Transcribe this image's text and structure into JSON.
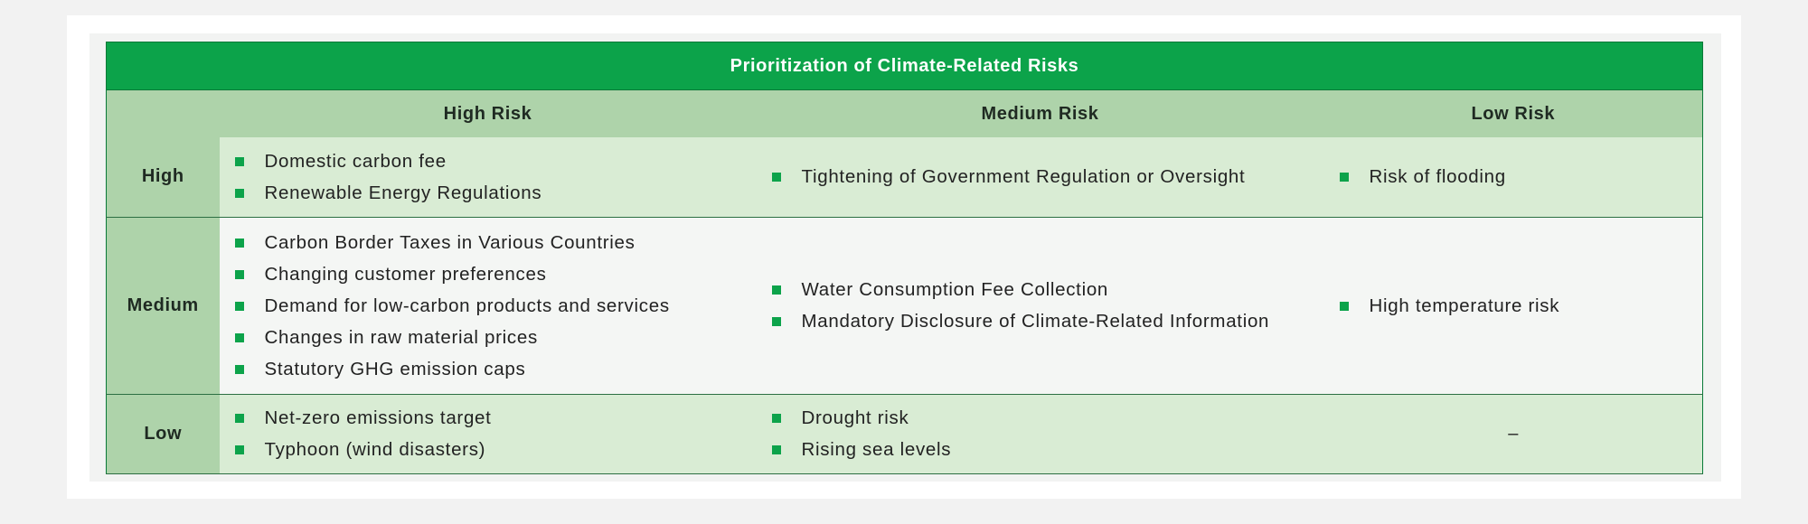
{
  "table": {
    "title": "Prioritization of Climate-Related Risks",
    "columns": [
      "High Risk",
      "Medium Risk",
      "Low Risk"
    ],
    "rows": [
      {
        "label": "High",
        "high": [
          "Domestic carbon fee",
          "Renewable Energy Regulations"
        ],
        "medium": [
          "Tightening of Government Regulation or Oversight"
        ],
        "low": [
          "Risk of flooding"
        ]
      },
      {
        "label": "Medium",
        "high": [
          "Carbon Border Taxes in Various Countries",
          "Changing customer preferences",
          "Demand for low-carbon products and services",
          "Changes in raw material prices",
          "Statutory GHG emission caps"
        ],
        "medium": [
          "Water Consumption Fee Collection",
          "Mandatory Disclosure of Climate-Related Information"
        ],
        "low": [
          "High temperature risk"
        ]
      },
      {
        "label": "Low",
        "high": [
          "Net-zero emissions target",
          "Typhoon (wind disasters)"
        ],
        "medium": [
          "Drought risk",
          "Rising sea levels"
        ],
        "low_text": "–"
      }
    ]
  },
  "colors": {
    "header_green": "#0ca34a",
    "label_green": "#aed3aa",
    "row_light": "#d9ecd4",
    "row_pale": "#f4f6f4",
    "bullet": "#0ca34a"
  }
}
